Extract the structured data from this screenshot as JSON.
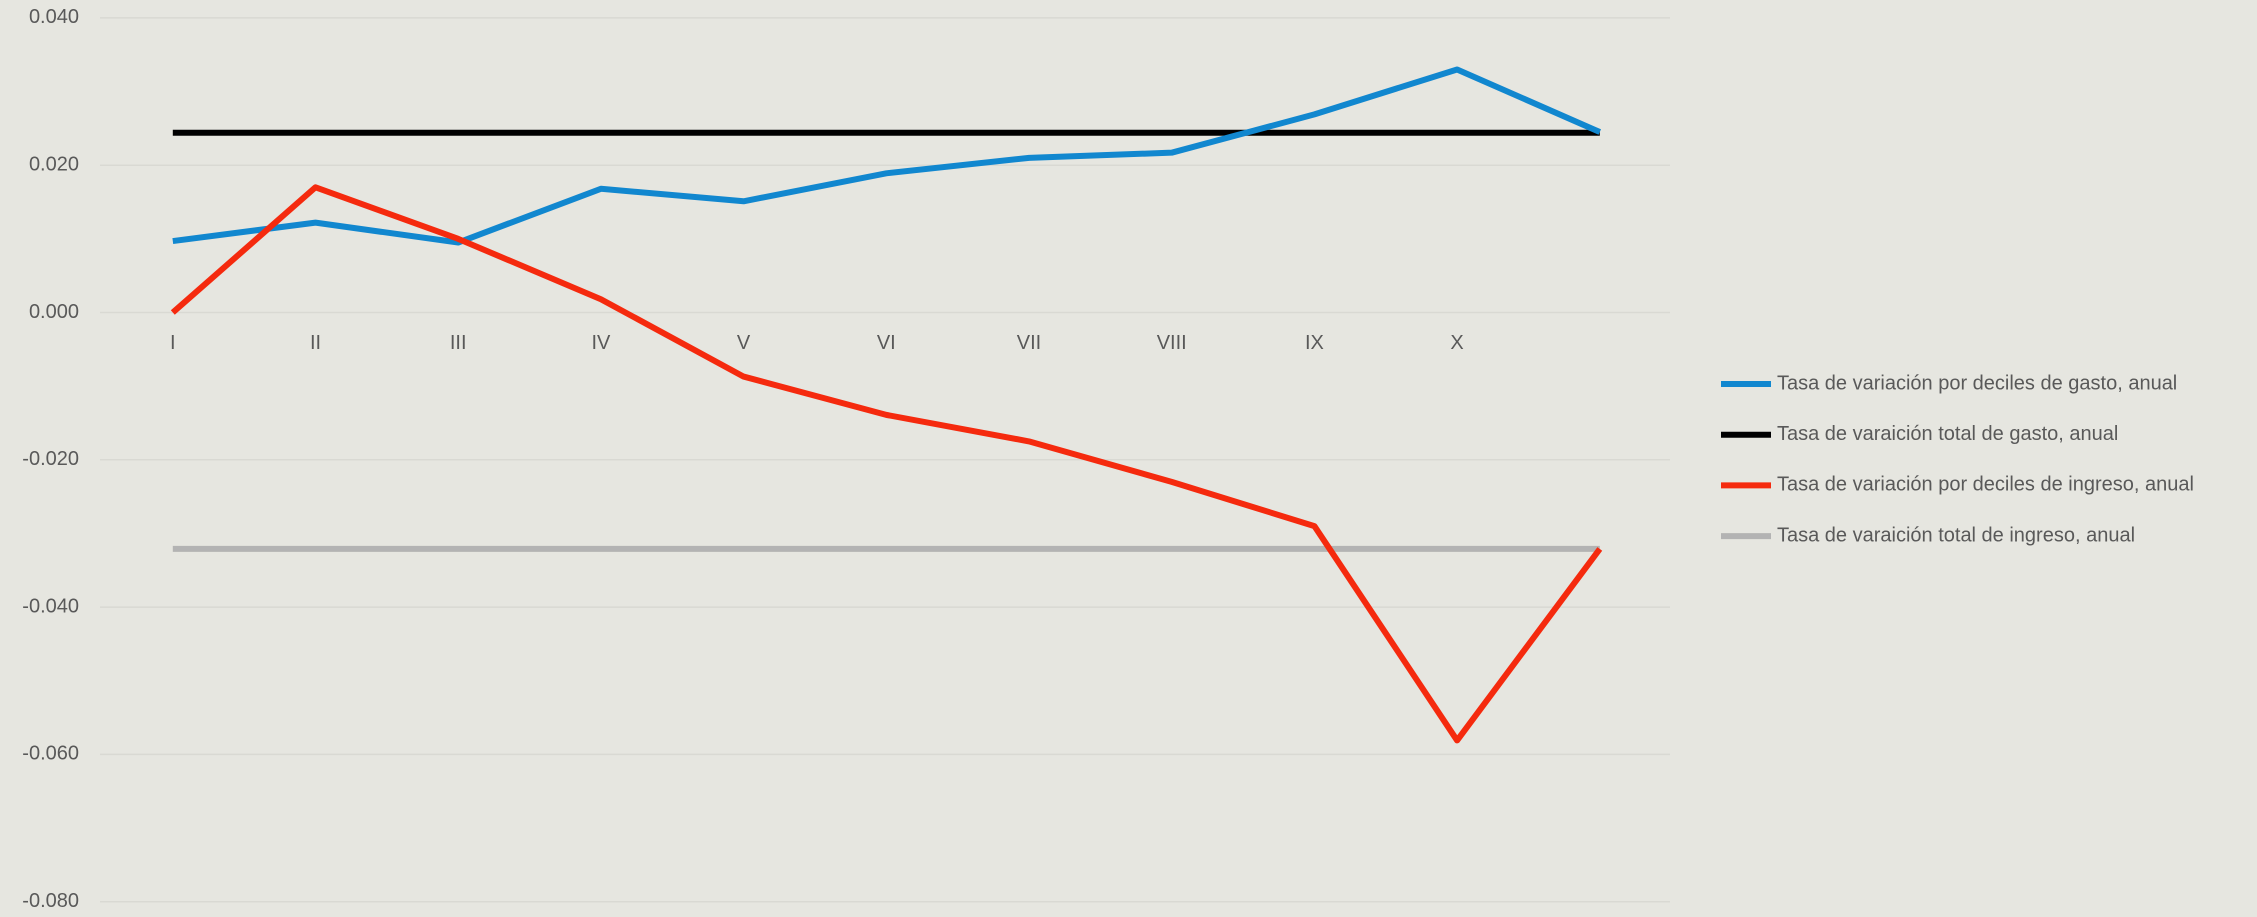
{
  "chart_data": {
    "type": "line",
    "categories": [
      "I",
      "II",
      "III",
      "IV",
      "V",
      "VI",
      "VII",
      "VIII",
      "IX",
      "X",
      null
    ],
    "series": [
      {
        "name": "Tasa de variación por deciles de gasto, anual",
        "color": "#1187cf",
        "values": [
          0.0097,
          0.0122,
          0.0095,
          0.0168,
          0.0151,
          0.0189,
          0.021,
          0.0217,
          0.0269,
          0.033,
          0.0245
        ]
      },
      {
        "name": "Tasa de varaición total de gasto, anual",
        "color": "#000000",
        "values": [
          0.0244,
          0.0244,
          0.0244,
          0.0244,
          0.0244,
          0.0244,
          0.0244,
          0.0244,
          0.0244,
          0.0244,
          0.0244
        ]
      },
      {
        "name": "Tasa de variación por deciles de ingreso, anual",
        "color": "#f52a0e",
        "values": [
          0.0,
          0.017,
          0.01,
          0.0018,
          -0.0087,
          -0.0139,
          -0.0175,
          -0.023,
          -0.029,
          -0.0581,
          -0.0321
        ]
      },
      {
        "name": "Tasa de varaición total de ingreso, anual",
        "color": "#b3b3b3",
        "values": [
          -0.0321,
          -0.0321,
          -0.0321,
          -0.0321,
          -0.0321,
          -0.0321,
          -0.0321,
          -0.0321,
          -0.0321,
          -0.0321,
          -0.0321
        ]
      }
    ],
    "ylim": [
      -0.08,
      0.04
    ],
    "yticks": [
      {
        "value": -0.08,
        "label": "-0.080"
      },
      {
        "value": -0.06,
        "label": "-0.060"
      },
      {
        "value": -0.04,
        "label": "-0.040"
      },
      {
        "value": -0.02,
        "label": "-0.020"
      },
      {
        "value": 0,
        "label": "0.000"
      },
      {
        "value": 0.02,
        "label": "0.020"
      },
      {
        "value": 0.04,
        "label": "0.040"
      }
    ],
    "grid": true,
    "legend": "right"
  }
}
